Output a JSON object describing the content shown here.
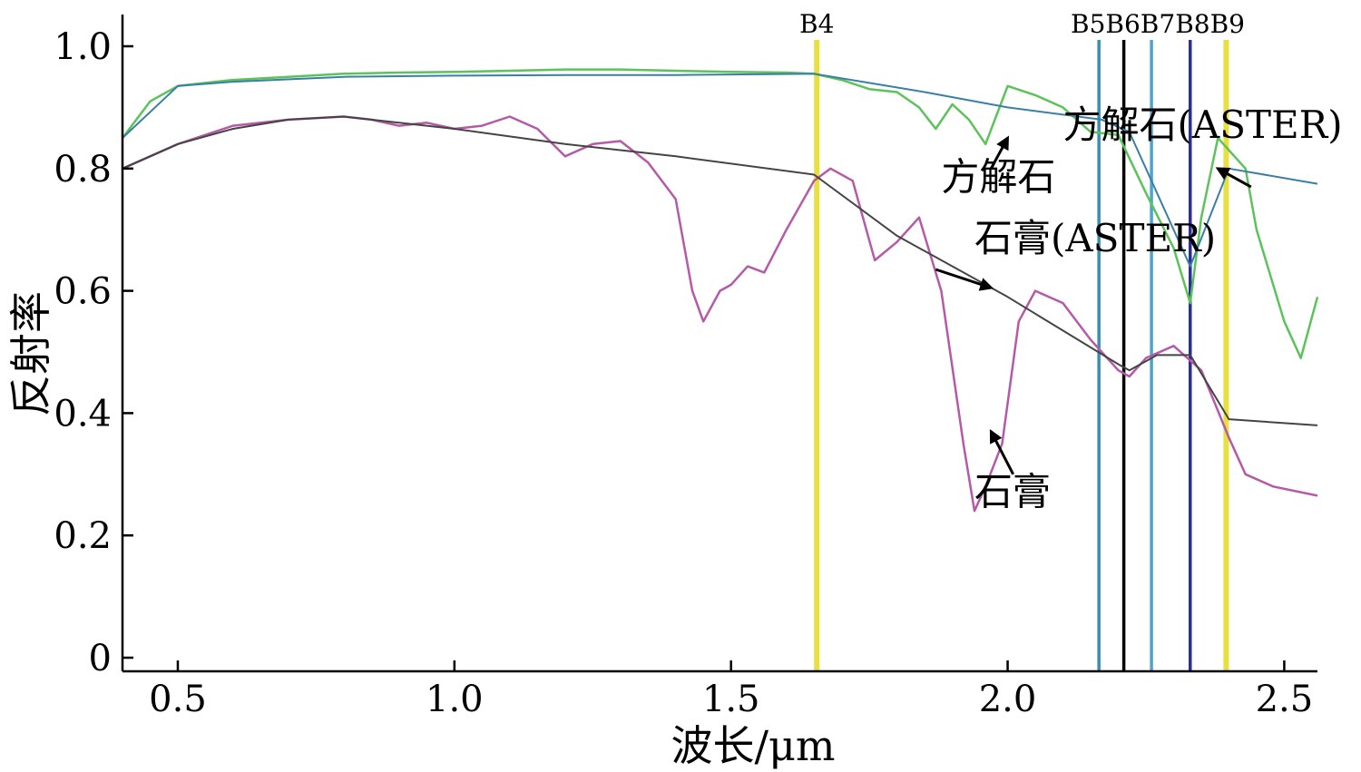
{
  "chart_data": {
    "type": "line",
    "xlabel": "波长/μm",
    "ylabel": "反射率",
    "xlim": [
      0.4,
      2.56
    ],
    "ylim": [
      0,
      1.05
    ],
    "xticks": [
      "0.5",
      "1.0",
      "1.5",
      "2.0",
      "2.5"
    ],
    "xtick_values": [
      0.5,
      1.0,
      1.5,
      2.0,
      2.5
    ],
    "yticks": [
      "0",
      "0.2",
      "0.4",
      "0.6",
      "0.8",
      "1.0"
    ],
    "ytick_values": [
      0,
      0.2,
      0.4,
      0.6,
      0.8,
      1.0
    ],
    "grid": false,
    "legend": "none",
    "series": [
      {
        "name": "方解石",
        "color": "#5cc35a",
        "x": [
          0.4,
          0.45,
          0.5,
          0.55,
          0.6,
          0.7,
          0.8,
          0.9,
          1.0,
          1.1,
          1.2,
          1.3,
          1.4,
          1.5,
          1.6,
          1.65,
          1.7,
          1.75,
          1.8,
          1.84,
          1.87,
          1.9,
          1.93,
          1.96,
          2.0,
          2.05,
          2.1,
          2.15,
          2.2,
          2.25,
          2.3,
          2.33,
          2.35,
          2.38,
          2.4,
          2.43,
          2.45,
          2.5,
          2.53,
          2.56
        ],
        "y": [
          0.85,
          0.91,
          0.935,
          0.94,
          0.945,
          0.95,
          0.955,
          0.957,
          0.958,
          0.96,
          0.962,
          0.962,
          0.96,
          0.958,
          0.957,
          0.955,
          0.945,
          0.93,
          0.925,
          0.9,
          0.865,
          0.905,
          0.88,
          0.84,
          0.935,
          0.92,
          0.9,
          0.86,
          0.855,
          0.76,
          0.67,
          0.58,
          0.72,
          0.85,
          0.83,
          0.8,
          0.7,
          0.55,
          0.49,
          0.59
        ]
      },
      {
        "name": "方解石(ASTER)",
        "color": "#3a7fa6",
        "x": [
          0.4,
          0.5,
          0.6,
          0.8,
          1.0,
          1.2,
          1.4,
          1.65,
          1.75,
          1.85,
          2.0,
          2.17,
          2.22,
          2.27,
          2.33,
          2.4,
          2.56
        ],
        "y": [
          0.85,
          0.935,
          0.942,
          0.95,
          0.952,
          0.953,
          0.953,
          0.955,
          0.94,
          0.925,
          0.9,
          0.88,
          0.86,
          0.76,
          0.64,
          0.8,
          0.775
        ]
      },
      {
        "name": "石膏",
        "color": "#b55aa6",
        "x": [
          0.4,
          0.5,
          0.6,
          0.7,
          0.8,
          0.85,
          0.9,
          0.95,
          1.0,
          1.05,
          1.1,
          1.15,
          1.2,
          1.25,
          1.3,
          1.35,
          1.4,
          1.43,
          1.45,
          1.48,
          1.5,
          1.53,
          1.56,
          1.6,
          1.65,
          1.68,
          1.72,
          1.76,
          1.8,
          1.84,
          1.88,
          1.92,
          1.94,
          1.96,
          1.99,
          2.02,
          2.05,
          2.1,
          2.15,
          2.2,
          2.22,
          2.25,
          2.3,
          2.35,
          2.4,
          2.43,
          2.48,
          2.56
        ],
        "y": [
          0.8,
          0.84,
          0.87,
          0.88,
          0.885,
          0.88,
          0.87,
          0.875,
          0.865,
          0.87,
          0.885,
          0.865,
          0.82,
          0.84,
          0.845,
          0.81,
          0.75,
          0.6,
          0.55,
          0.6,
          0.61,
          0.64,
          0.63,
          0.7,
          0.78,
          0.8,
          0.78,
          0.65,
          0.68,
          0.72,
          0.6,
          0.35,
          0.24,
          0.28,
          0.35,
          0.55,
          0.6,
          0.58,
          0.52,
          0.47,
          0.46,
          0.49,
          0.51,
          0.47,
          0.36,
          0.3,
          0.28,
          0.265
        ]
      },
      {
        "name": "石膏(ASTER)",
        "color": "#444444",
        "x": [
          0.4,
          0.5,
          0.6,
          0.7,
          0.8,
          1.0,
          1.2,
          1.4,
          1.65,
          1.8,
          2.0,
          2.2,
          2.22,
          2.27,
          2.33,
          2.4,
          2.56
        ],
        "y": [
          0.8,
          0.84,
          0.865,
          0.88,
          0.885,
          0.865,
          0.84,
          0.82,
          0.79,
          0.69,
          0.59,
          0.48,
          0.47,
          0.495,
          0.495,
          0.39,
          0.38
        ]
      }
    ],
    "bands": [
      {
        "label": "B4",
        "x": 1.655,
        "color": "#e8e040"
      },
      {
        "label": "B5",
        "x": 2.165,
        "color": "#3a8fb0"
      },
      {
        "label": "B6",
        "x": 2.21,
        "color": "#000000"
      },
      {
        "label": "B7",
        "x": 2.26,
        "color": "#4aa6d0"
      },
      {
        "label": "B8",
        "x": 2.33,
        "color": "#2a2e9a"
      },
      {
        "label": "B9",
        "x": 2.395,
        "color": "#e8e040"
      }
    ],
    "band_header": "B5B6B7B8B9",
    "annotations": [
      {
        "text": "方解石",
        "x": 1.88,
        "y": 0.765,
        "arrow_to": [
          2.0,
          0.85
        ],
        "arrow_from": [
          1.97,
          0.8
        ]
      },
      {
        "text": "方解石(ASTER)",
        "x": 2.1,
        "y": 0.85,
        "arrow_to": [
          2.38,
          0.8
        ],
        "arrow_from": [
          2.44,
          0.77
        ]
      },
      {
        "text": "石膏(ASTER)",
        "x": 1.94,
        "y": 0.665,
        "arrow_to": [
          1.97,
          0.605
        ],
        "arrow_from": [
          1.87,
          0.635
        ]
      },
      {
        "text": "石膏",
        "x": 1.94,
        "y": 0.25,
        "arrow_to": [
          1.97,
          0.37
        ],
        "arrow_from": [
          2.01,
          0.3
        ]
      }
    ]
  }
}
